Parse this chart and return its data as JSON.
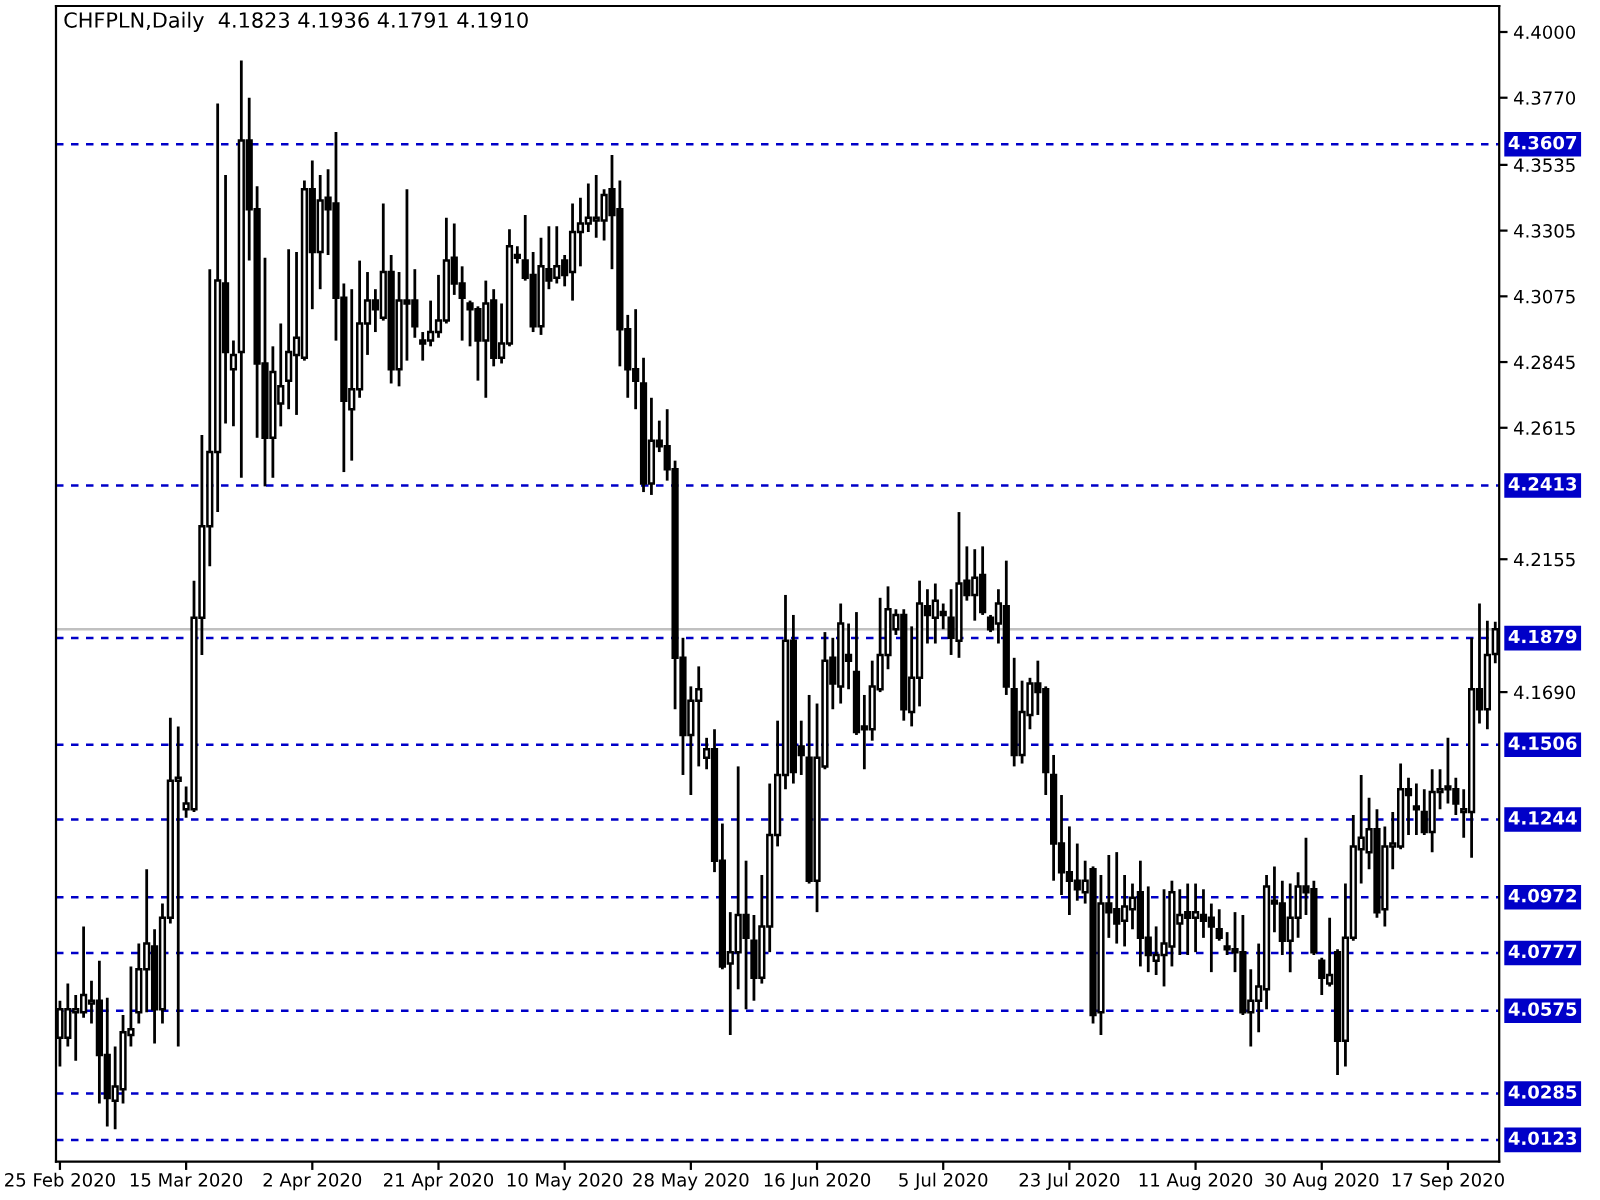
{
  "chart_data": {
    "type": "candlestick",
    "title": "CHFPLN,Daily  4.1823 4.1936 4.1791 4.1910",
    "categories": [
      "25 Feb 2020",
      null,
      null,
      null,
      null,
      null,
      null,
      null,
      null,
      null,
      null,
      null,
      null,
      null,
      null,
      null,
      "15 Mar 2020",
      null,
      null,
      null,
      null,
      null,
      null,
      null,
      null,
      null,
      null,
      null,
      null,
      null,
      null,
      null,
      "2 Apr 2020",
      null,
      null,
      null,
      null,
      null,
      null,
      null,
      null,
      null,
      null,
      null,
      null,
      null,
      null,
      null,
      "21 Apr 2020",
      null,
      null,
      null,
      null,
      null,
      null,
      null,
      null,
      null,
      null,
      null,
      null,
      null,
      null,
      null,
      "10 May 2020",
      null,
      null,
      null,
      null,
      null,
      null,
      null,
      null,
      null,
      null,
      null,
      null,
      null,
      null,
      null,
      "28 May 2020",
      null,
      null,
      null,
      null,
      null,
      null,
      null,
      null,
      null,
      null,
      null,
      null,
      null,
      null,
      null,
      "16 Jun 2020",
      null,
      null,
      null,
      null,
      null,
      null,
      null,
      null,
      null,
      null,
      null,
      null,
      null,
      null,
      null,
      "5 Jul 2020",
      null,
      null,
      null,
      null,
      null,
      null,
      null,
      null,
      null,
      null,
      null,
      null,
      null,
      null,
      null,
      "23 Jul 2020",
      null,
      null,
      null,
      null,
      null,
      null,
      null,
      null,
      null,
      null,
      null,
      null,
      null,
      null,
      null,
      "11 Aug 2020",
      null,
      null,
      null,
      null,
      null,
      null,
      null,
      null,
      null,
      null,
      null,
      null,
      null,
      null,
      null,
      "30 Aug 2020",
      null,
      null,
      null,
      null,
      null,
      null,
      null,
      null,
      null,
      null,
      null,
      null,
      null,
      null,
      null,
      "17 Sep 2020",
      null,
      null,
      null,
      null,
      null,
      null
    ],
    "color": "#000000",
    "ohlc": [
      [
        4.048,
        4.061,
        4.038,
        4.058
      ],
      [
        4.048,
        4.067,
        4.045,
        4.058
      ],
      [
        4.057,
        4.063,
        4.04,
        4.058
      ],
      [
        4.057,
        4.087,
        4.055,
        4.063
      ],
      [
        4.06,
        4.068,
        4.053,
        4.061
      ],
      [
        4.061,
        4.075,
        4.025,
        4.042
      ],
      [
        4.042,
        4.062,
        4.017,
        4.027
      ],
      [
        4.026,
        4.045,
        4.016,
        4.031
      ],
      [
        4.03,
        4.056,
        4.025,
        4.05
      ],
      [
        4.049,
        4.073,
        4.045,
        4.051
      ],
      [
        4.057,
        4.081,
        4.053,
        4.072
      ],
      [
        4.072,
        4.107,
        4.057,
        4.081
      ],
      [
        4.08,
        4.086,
        4.046,
        4.058
      ],
      [
        4.058,
        4.095,
        4.053,
        4.09
      ],
      [
        4.09,
        4.16,
        4.088,
        4.138
      ],
      [
        4.138,
        4.157,
        4.045,
        4.139
      ],
      [
        4.128,
        4.136,
        4.125,
        4.13
      ],
      [
        4.128,
        4.208,
        4.127,
        4.195
      ],
      [
        4.195,
        4.259,
        4.182,
        4.227
      ],
      [
        4.227,
        4.317,
        4.213,
        4.253
      ],
      [
        4.253,
        4.375,
        4.232,
        4.313
      ],
      [
        4.312,
        4.35,
        4.263,
        4.288
      ],
      [
        4.282,
        4.292,
        4.262,
        4.287
      ],
      [
        4.288,
        4.39,
        4.244,
        4.362
      ],
      [
        4.362,
        4.377,
        4.32,
        4.338
      ],
      [
        4.338,
        4.346,
        4.258,
        4.284
      ],
      [
        4.284,
        4.321,
        4.241,
        4.258
      ],
      [
        4.258,
        4.29,
        4.244,
        4.281
      ],
      [
        4.27,
        4.298,
        4.262,
        4.276
      ],
      [
        4.278,
        4.324,
        4.268,
        4.288
      ],
      [
        4.287,
        4.323,
        4.266,
        4.293
      ],
      [
        4.286,
        4.348,
        4.285,
        4.345
      ],
      [
        4.345,
        4.355,
        4.303,
        4.323
      ],
      [
        4.323,
        4.35,
        4.31,
        4.341
      ],
      [
        4.342,
        4.352,
        4.322,
        4.338
      ],
      [
        4.34,
        4.365,
        4.292,
        4.307
      ],
      [
        4.307,
        4.312,
        4.246,
        4.271
      ],
      [
        4.268,
        4.31,
        4.25,
        4.275
      ],
      [
        4.275,
        4.32,
        4.272,
        4.298
      ],
      [
        4.298,
        4.316,
        4.287,
        4.306
      ],
      [
        4.306,
        4.31,
        4.295,
        4.303
      ],
      [
        4.3,
        4.34,
        4.299,
        4.316
      ],
      [
        4.316,
        4.322,
        4.277,
        4.282
      ],
      [
        4.282,
        4.316,
        4.276,
        4.306
      ],
      [
        4.306,
        4.345,
        4.285,
        4.305
      ],
      [
        4.306,
        4.317,
        4.293,
        4.297
      ],
      [
        4.292,
        4.295,
        4.285,
        4.291
      ],
      [
        4.292,
        4.306,
        4.29,
        4.295
      ],
      [
        4.295,
        4.315,
        4.293,
        4.299
      ],
      [
        4.299,
        4.335,
        4.298,
        4.32
      ],
      [
        4.321,
        4.333,
        4.308,
        4.312
      ],
      [
        4.312,
        4.318,
        4.292,
        4.307
      ],
      [
        4.305,
        4.306,
        4.29,
        4.303
      ],
      [
        4.303,
        4.304,
        4.278,
        4.292
      ],
      [
        4.292,
        4.313,
        4.272,
        4.305
      ],
      [
        4.306,
        4.31,
        4.283,
        4.286
      ],
      [
        4.286,
        4.305,
        4.284,
        4.291
      ],
      [
        4.291,
        4.331,
        4.29,
        4.325
      ],
      [
        4.322,
        4.325,
        4.319,
        4.321
      ],
      [
        4.32,
        4.336,
        4.313,
        4.314
      ],
      [
        4.315,
        4.323,
        4.295,
        4.297
      ],
      [
        4.297,
        4.328,
        4.294,
        4.318
      ],
      [
        4.317,
        4.332,
        4.31,
        4.313
      ],
      [
        4.314,
        4.332,
        4.312,
        4.318
      ],
      [
        4.32,
        4.322,
        4.311,
        4.315
      ],
      [
        4.316,
        4.34,
        4.306,
        4.33
      ],
      [
        4.33,
        4.342,
        4.318,
        4.333
      ],
      [
        4.333,
        4.347,
        4.33,
        4.335
      ],
      [
        4.334,
        4.35,
        4.328,
        4.335
      ],
      [
        4.334,
        4.345,
        4.327,
        4.343
      ],
      [
        4.345,
        4.357,
        4.317,
        4.336
      ],
      [
        4.338,
        4.348,
        4.283,
        4.296
      ],
      [
        4.296,
        4.301,
        4.272,
        4.282
      ],
      [
        4.282,
        4.303,
        4.268,
        4.278
      ],
      [
        4.277,
        4.286,
        4.239,
        4.242
      ],
      [
        4.242,
        4.272,
        4.238,
        4.257
      ],
      [
        4.257,
        4.264,
        4.253,
        4.255
      ],
      [
        4.255,
        4.268,
        4.243,
        4.247
      ],
      [
        4.247,
        4.25,
        4.163,
        4.181
      ],
      [
        4.181,
        4.188,
        4.14,
        4.154
      ],
      [
        4.154,
        4.171,
        4.133,
        4.166
      ],
      [
        4.166,
        4.178,
        4.143,
        4.17
      ],
      [
        4.146,
        4.153,
        4.142,
        4.149
      ],
      [
        4.149,
        4.156,
        4.106,
        4.11
      ],
      [
        4.11,
        4.123,
        4.072,
        4.073
      ],
      [
        4.074,
        4.092,
        4.049,
        4.078
      ],
      [
        4.078,
        4.143,
        4.065,
        4.091
      ],
      [
        4.091,
        4.11,
        4.058,
        4.083
      ],
      [
        4.082,
        4.091,
        4.061,
        4.069
      ],
      [
        4.069,
        4.105,
        4.067,
        4.087
      ],
      [
        4.087,
        4.137,
        4.078,
        4.119
      ],
      [
        4.119,
        4.159,
        4.115,
        4.14
      ],
      [
        4.14,
        4.203,
        4.135,
        4.187
      ],
      [
        4.187,
        4.196,
        4.137,
        4.141
      ],
      [
        4.15,
        4.159,
        4.14,
        4.147
      ],
      [
        4.146,
        4.168,
        4.102,
        4.103
      ],
      [
        4.103,
        4.165,
        4.092,
        4.146
      ],
      [
        4.143,
        4.19,
        4.142,
        4.18
      ],
      [
        4.181,
        4.188,
        4.163,
        4.172
      ],
      [
        4.171,
        4.2,
        4.165,
        4.193
      ],
      [
        4.182,
        4.193,
        4.17,
        4.18
      ],
      [
        4.176,
        4.197,
        4.154,
        4.155
      ],
      [
        4.157,
        4.168,
        4.142,
        4.156
      ],
      [
        4.156,
        4.18,
        4.152,
        4.171
      ],
      [
        4.17,
        4.202,
        4.169,
        4.182
      ],
      [
        4.182,
        4.206,
        4.177,
        4.198
      ],
      [
        4.191,
        4.198,
        4.189,
        4.196
      ],
      [
        4.196,
        4.198,
        4.159,
        4.163
      ],
      [
        4.162,
        4.192,
        4.157,
        4.174
      ],
      [
        4.174,
        4.208,
        4.164,
        4.2
      ],
      [
        4.199,
        4.205,
        4.186,
        4.196
      ],
      [
        4.195,
        4.207,
        4.186,
        4.201
      ],
      [
        4.197,
        4.2,
        4.191,
        4.196
      ],
      [
        4.195,
        4.205,
        4.182,
        4.188
      ],
      [
        4.187,
        4.232,
        4.181,
        4.207
      ],
      [
        4.208,
        4.22,
        4.201,
        4.203
      ],
      [
        4.203,
        4.219,
        4.194,
        4.209
      ],
      [
        4.21,
        4.22,
        4.196,
        4.197
      ],
      [
        4.195,
        4.196,
        4.19,
        4.191
      ],
      [
        4.193,
        4.205,
        4.186,
        4.2
      ],
      [
        4.199,
        4.215,
        4.168,
        4.171
      ],
      [
        4.17,
        4.181,
        4.143,
        4.147
      ],
      [
        4.147,
        4.173,
        4.144,
        4.162
      ],
      [
        4.161,
        4.174,
        4.156,
        4.172
      ],
      [
        4.172,
        4.18,
        4.161,
        4.169
      ],
      [
        4.17,
        4.171,
        4.133,
        4.141
      ],
      [
        4.14,
        4.147,
        4.103,
        4.116
      ],
      [
        4.116,
        4.133,
        4.098,
        4.106
      ],
      [
        4.106,
        4.122,
        4.091,
        4.103
      ],
      [
        4.103,
        4.116,
        4.096,
        4.1
      ],
      [
        4.099,
        4.11,
        4.095,
        4.103
      ],
      [
        4.107,
        4.108,
        4.053,
        4.056
      ],
      [
        4.057,
        4.105,
        4.049,
        4.095
      ],
      [
        4.095,
        4.112,
        4.083,
        4.092
      ],
      [
        4.093,
        4.113,
        4.081,
        4.088
      ],
      [
        4.089,
        4.105,
        4.08,
        4.094
      ],
      [
        4.093,
        4.102,
        4.086,
        4.097
      ],
      [
        4.099,
        4.11,
        4.073,
        4.083
      ],
      [
        4.083,
        4.101,
        4.071,
        4.077
      ],
      [
        4.075,
        4.087,
        4.07,
        4.077
      ],
      [
        4.077,
        4.1,
        4.066,
        4.081
      ],
      [
        4.08,
        4.103,
        4.073,
        4.099
      ],
      [
        4.088,
        4.1,
        4.077,
        4.091
      ],
      [
        4.092,
        4.102,
        4.077,
        4.09
      ],
      [
        4.09,
        4.102,
        4.078,
        4.092
      ],
      [
        4.091,
        4.1,
        4.083,
        4.089
      ],
      [
        4.09,
        4.095,
        4.071,
        4.087
      ],
      [
        4.086,
        4.093,
        4.082,
        4.083
      ],
      [
        4.08,
        4.085,
        4.077,
        4.079
      ],
      [
        4.079,
        4.092,
        4.071,
        4.078
      ],
      [
        4.078,
        4.091,
        4.056,
        4.057
      ],
      [
        4.057,
        4.072,
        4.045,
        4.061
      ],
      [
        4.061,
        4.081,
        4.05,
        4.066
      ],
      [
        4.065,
        4.105,
        4.058,
        4.101
      ],
      [
        4.096,
        4.108,
        4.085,
        4.095
      ],
      [
        4.095,
        4.103,
        4.077,
        4.082
      ],
      [
        4.082,
        4.102,
        4.071,
        4.09
      ],
      [
        4.09,
        4.106,
        4.083,
        4.101
      ],
      [
        4.101,
        4.118,
        4.091,
        4.099
      ],
      [
        4.1,
        4.103,
        4.077,
        4.078
      ],
      [
        4.075,
        4.076,
        4.063,
        4.069
      ],
      [
        4.067,
        4.09,
        4.066,
        4.07
      ],
      [
        4.078,
        4.079,
        4.035,
        4.047
      ],
      [
        4.047,
        4.102,
        4.038,
        4.083
      ],
      [
        4.083,
        4.126,
        4.082,
        4.115
      ],
      [
        4.114,
        4.14,
        4.102,
        4.118
      ],
      [
        4.113,
        4.132,
        4.107,
        4.121
      ],
      [
        4.121,
        4.128,
        4.09,
        4.092
      ],
      [
        4.093,
        4.122,
        4.087,
        4.115
      ],
      [
        4.115,
        4.127,
        4.107,
        4.116
      ],
      [
        4.115,
        4.144,
        4.114,
        4.135
      ],
      [
        4.135,
        4.139,
        4.119,
        4.133
      ],
      [
        4.129,
        4.137,
        4.119,
        4.128
      ],
      [
        4.127,
        4.135,
        4.119,
        4.12
      ],
      [
        4.12,
        4.142,
        4.113,
        4.134
      ],
      [
        4.134,
        4.142,
        4.128,
        4.135
      ],
      [
        4.136,
        4.153,
        4.13,
        4.135
      ],
      [
        4.135,
        4.139,
        4.126,
        4.13
      ],
      [
        4.127,
        4.135,
        4.118,
        4.128
      ],
      [
        4.127,
        4.188,
        4.111,
        4.17
      ],
      [
        4.17,
        4.2,
        4.158,
        4.163
      ],
      [
        4.163,
        4.194,
        4.156,
        4.182
      ],
      [
        4.1823,
        4.1936,
        4.1791,
        4.191
      ]
    ],
    "ylim": [
      4.0047,
      4.4091
    ],
    "yticks": [
      {
        "value": 4.4,
        "label": "4.4000"
      },
      {
        "value": 4.377,
        "label": "4.3770"
      },
      {
        "value": 4.3535,
        "label": "4.3535"
      },
      {
        "value": 4.3305,
        "label": "4.3305"
      },
      {
        "value": 4.3075,
        "label": "4.3075"
      },
      {
        "value": 4.2845,
        "label": "4.2845"
      },
      {
        "value": 4.2615,
        "label": "4.2615"
      },
      {
        "value": 4.2155,
        "label": "4.2155"
      },
      {
        "value": 4.169,
        "label": "4.1690"
      }
    ],
    "ref_lines": [
      {
        "axis": "y",
        "value": 4.3607,
        "label": "4.3607",
        "color": "#0000c8",
        "line_style": "dashed"
      },
      {
        "axis": "y",
        "value": 4.2413,
        "label": "4.2413",
        "color": "#0000c8",
        "line_style": "dashed"
      },
      {
        "axis": "y",
        "value": 4.191,
        "color": "#c0c0c0",
        "line_style": "solid"
      },
      {
        "axis": "y",
        "value": 4.1879,
        "label": "4.1879",
        "color": "#0000c8",
        "line_style": "dashed"
      },
      {
        "axis": "y",
        "value": 4.1506,
        "label": "4.1506",
        "color": "#0000c8",
        "line_style": "dashed"
      },
      {
        "axis": "y",
        "value": 4.1244,
        "label": "4.1244",
        "color": "#0000c8",
        "line_style": "dashed"
      },
      {
        "axis": "y",
        "value": 4.0972,
        "label": "4.0972",
        "color": "#0000c8",
        "line_style": "dashed"
      },
      {
        "axis": "y",
        "value": 4.0777,
        "label": "4.0777",
        "color": "#0000c8",
        "line_style": "dashed"
      },
      {
        "axis": "y",
        "value": 4.0575,
        "label": "4.0575",
        "color": "#0000c8",
        "line_style": "dashed"
      },
      {
        "axis": "y",
        "value": 4.0285,
        "label": "4.0285",
        "color": "#0000c8",
        "line_style": "dashed"
      },
      {
        "axis": "y",
        "value": 4.0123,
        "label": "4.0123",
        "color": "#0000c8",
        "line_style": "dashed"
      }
    ],
    "grid": false,
    "legend": false
  }
}
